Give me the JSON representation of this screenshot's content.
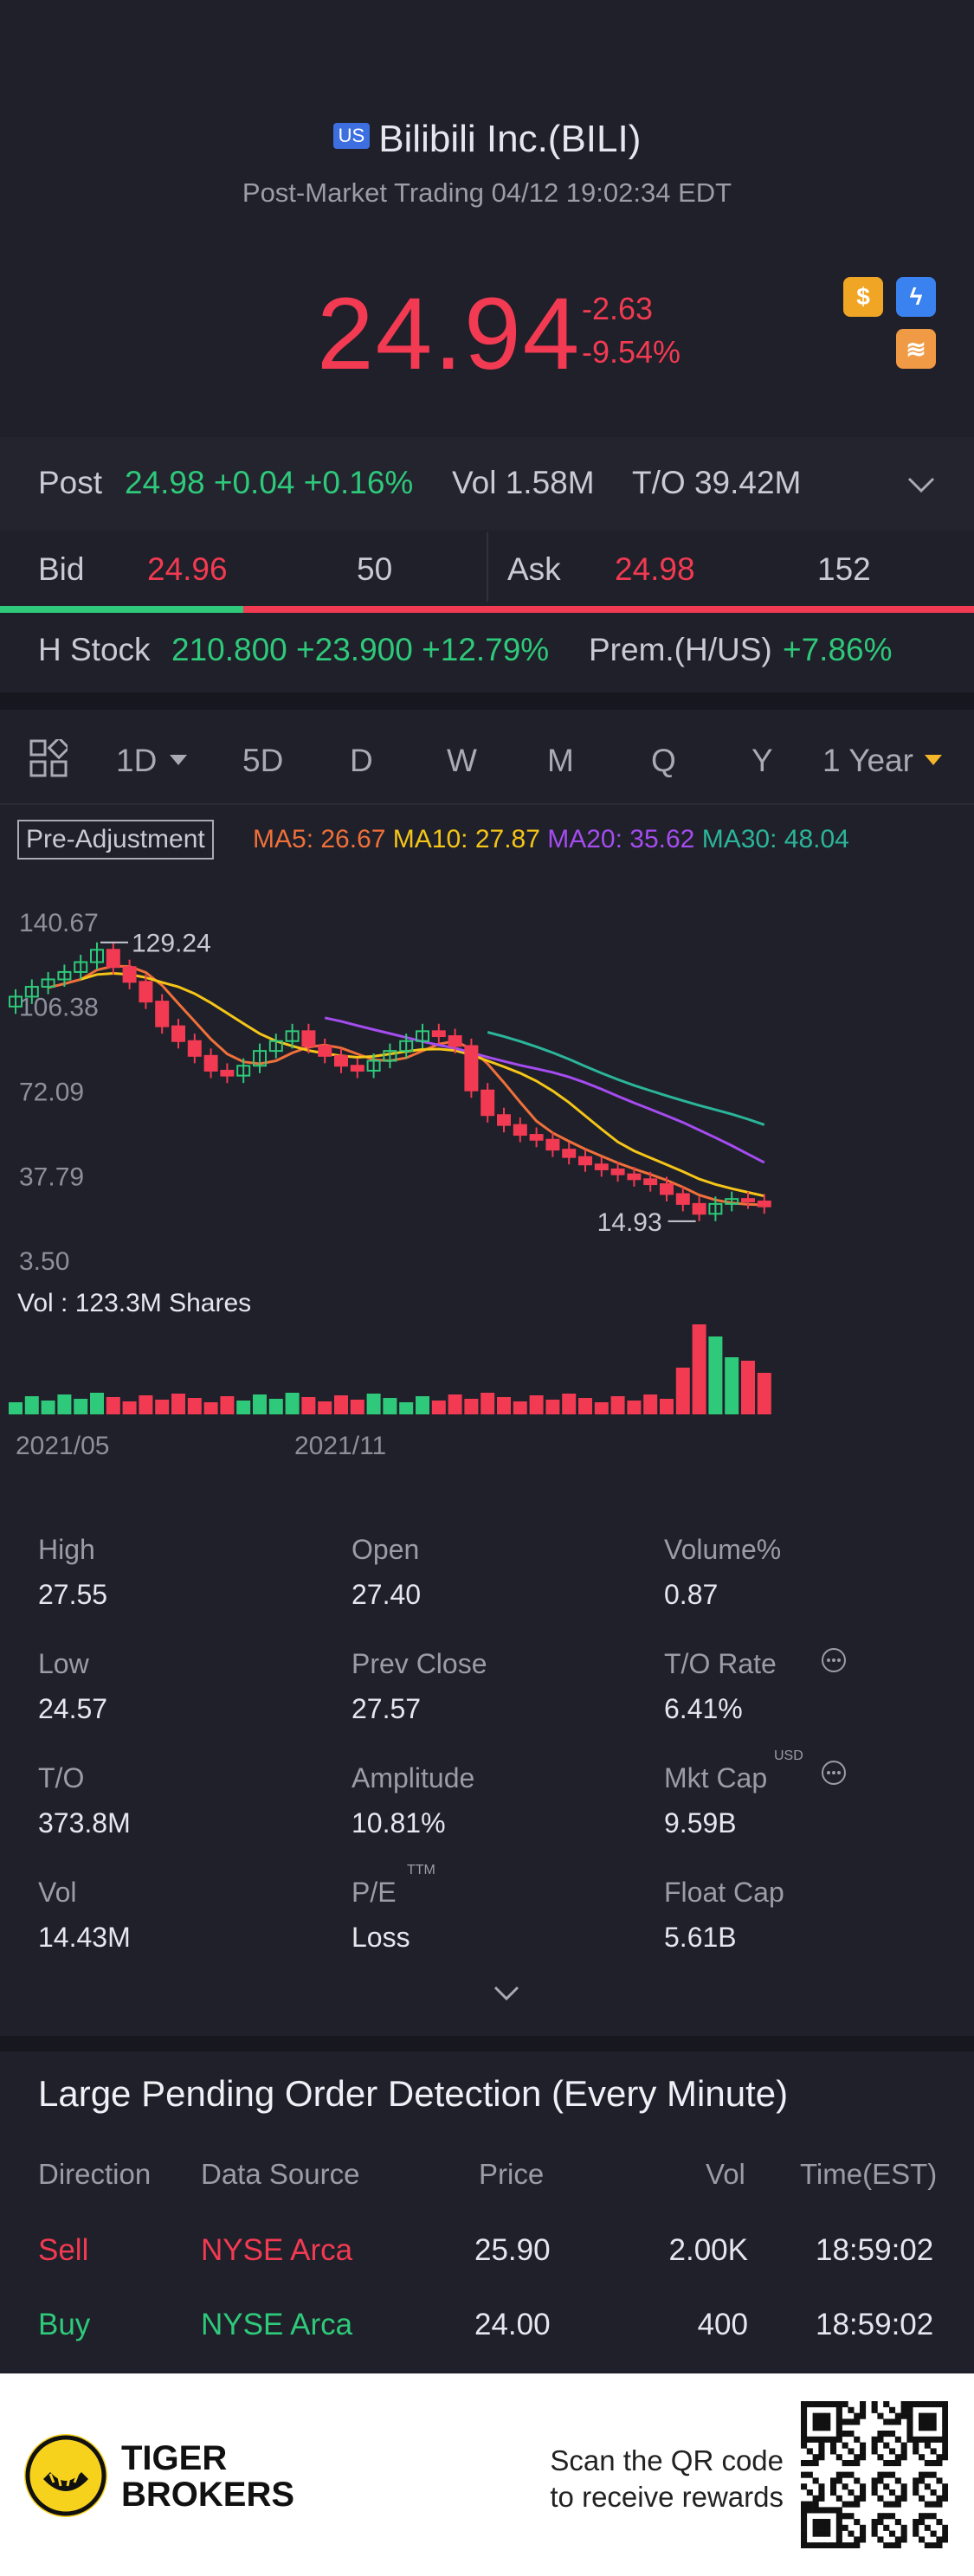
{
  "header": {
    "market_badge": "US",
    "title": "Bilibili Inc.(BILI)",
    "subtitle": "Post-Market Trading 04/12 19:02:34 EDT",
    "price": "24.94",
    "change": "-2.63",
    "change_pct": "-9.54%",
    "icons": [
      "dollar-icon",
      "flash-icon",
      "stack-icon"
    ]
  },
  "post": {
    "label": "Post",
    "value": "24.98 +0.04 +0.16%",
    "vol": "Vol 1.58M",
    "to": "T/O 39.42M"
  },
  "bidask": {
    "bid_label": "Bid",
    "bid_price": "24.96",
    "bid_size": "50",
    "ask_label": "Ask",
    "ask_price": "24.98",
    "ask_size": "152",
    "bid_fraction": 0.25
  },
  "hstock": {
    "label": "H Stock",
    "value": "210.800 +23.900 +12.79%",
    "prem_label": "Prem.(H/US)",
    "prem_value": "+7.86%"
  },
  "toolbar": {
    "periods": [
      "1D",
      "5D",
      "D",
      "W",
      "M",
      "Q",
      "Y",
      "1 Year"
    ],
    "active": "1 Year"
  },
  "chart_data": {
    "type": "candlestick",
    "adjustment": "Pre-Adjustment",
    "ma": [
      {
        "name": "MA5",
        "value": "26.67",
        "color": "#f0703a"
      },
      {
        "name": "MA10",
        "value": "27.87",
        "color": "#f5c518"
      },
      {
        "name": "MA20",
        "value": "35.62",
        "color": "#a54cf0"
      },
      {
        "name": "MA30",
        "value": "48.04",
        "color": "#2bb59a"
      }
    ],
    "y_ticks": [
      "140.67",
      "106.38",
      "72.09",
      "37.79",
      "3.50"
    ],
    "ylim": [
      3.5,
      140.67
    ],
    "high_mark": "129.24",
    "low_mark": "14.93",
    "x_ticks": [
      "2021/05",
      "2021/11"
    ],
    "volume_label": "Vol  : 123.3M Shares",
    "closes": [
      110,
      114,
      117,
      120,
      124,
      129,
      122,
      116,
      108,
      98,
      92,
      86,
      80,
      78,
      82,
      88,
      92,
      96,
      90,
      86,
      82,
      80,
      84,
      88,
      92,
      96,
      94,
      90,
      72,
      62,
      58,
      54,
      52,
      48,
      45,
      42,
      40,
      38,
      36,
      34,
      30,
      26,
      22,
      26,
      28,
      27,
      25
    ]
  },
  "stats": [
    {
      "label": "High",
      "value": "27.55"
    },
    {
      "label": "Open",
      "value": "27.40"
    },
    {
      "label": "Volume%",
      "value": "0.87"
    },
    {
      "label": "Low",
      "value": "24.57"
    },
    {
      "label": "Prev Close",
      "value": "27.57"
    },
    {
      "label": "T/O Rate",
      "value": "6.41%"
    },
    {
      "label": "T/O",
      "value": "373.8M"
    },
    {
      "label": "Amplitude",
      "value": "10.81%"
    },
    {
      "label": "Mkt Cap",
      "value": "9.59B"
    },
    {
      "label": "Vol",
      "value": "14.43M"
    },
    {
      "label": "P/E",
      "value": "Loss"
    },
    {
      "label": "Float Cap",
      "value": "5.61B"
    }
  ],
  "stat_superscripts": {
    "pe": "TTM",
    "mktcap": "USD"
  },
  "orders": {
    "title": "Large Pending Order Detection (Every Minute)",
    "headers": [
      "Direction",
      "Data Source",
      "Price",
      "Vol",
      "Time(EST)"
    ],
    "rows": [
      {
        "direction": "Sell",
        "source": "NYSE Arca",
        "price": "25.90",
        "vol": "2.00K",
        "time": "18:59:02"
      },
      {
        "direction": "Buy",
        "source": "NYSE Arca",
        "price": "24.00",
        "vol": "400",
        "time": "18:59:02"
      }
    ]
  },
  "footer": {
    "brand_line1": "TIGER",
    "brand_line2": "BROKERS",
    "scan_line1": "Scan the QR code",
    "scan_line2": "to receive rewards"
  }
}
